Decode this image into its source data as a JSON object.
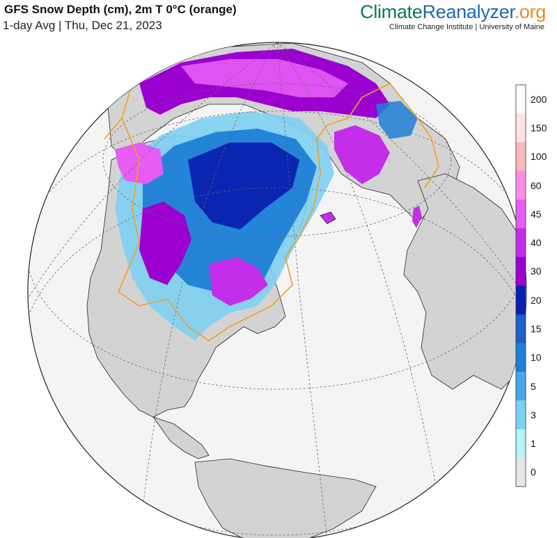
{
  "header": {
    "title": "GFS Snow Depth (cm), 2m T 0°C (orange)",
    "subtitle": "1-day Avg | Thu, Dec 21, 2023"
  },
  "brand": {
    "part1": "Climate",
    "part2": "Reanalyzer",
    "part3": ".org",
    "subtitle": "Climate Change Institute | University of Maine",
    "colors": {
      "climate": "#0d7a57",
      "reanalyzer": "#1f66b0",
      "org": "#e58b1f"
    }
  },
  "map": {
    "projection": "orthographic (Northern Hemisphere, North Atlantic centered)",
    "variable": "snow depth",
    "overlay": "2m temperature 0°C contour",
    "overlay_color": "#f0a020",
    "ocean_color": "#f4f4f4",
    "land_color": "#d3d3d3"
  },
  "colorbar": {
    "labels": [
      "200",
      "150",
      "100",
      "60",
      "45",
      "40",
      "30",
      "20",
      "15",
      "10",
      "5",
      "3",
      "1",
      "0"
    ],
    "colors": [
      "#ffffff",
      "#fde3e3",
      "#f9b8bb",
      "#f98de8",
      "#e65cf5",
      "#c52ee8",
      "#9c00d1",
      "#0a20b0",
      "#1f5ec8",
      "#1f7fd6",
      "#4aa6e8",
      "#7ed0f2",
      "#b4f3f8",
      "#e6e6e6"
    ]
  }
}
